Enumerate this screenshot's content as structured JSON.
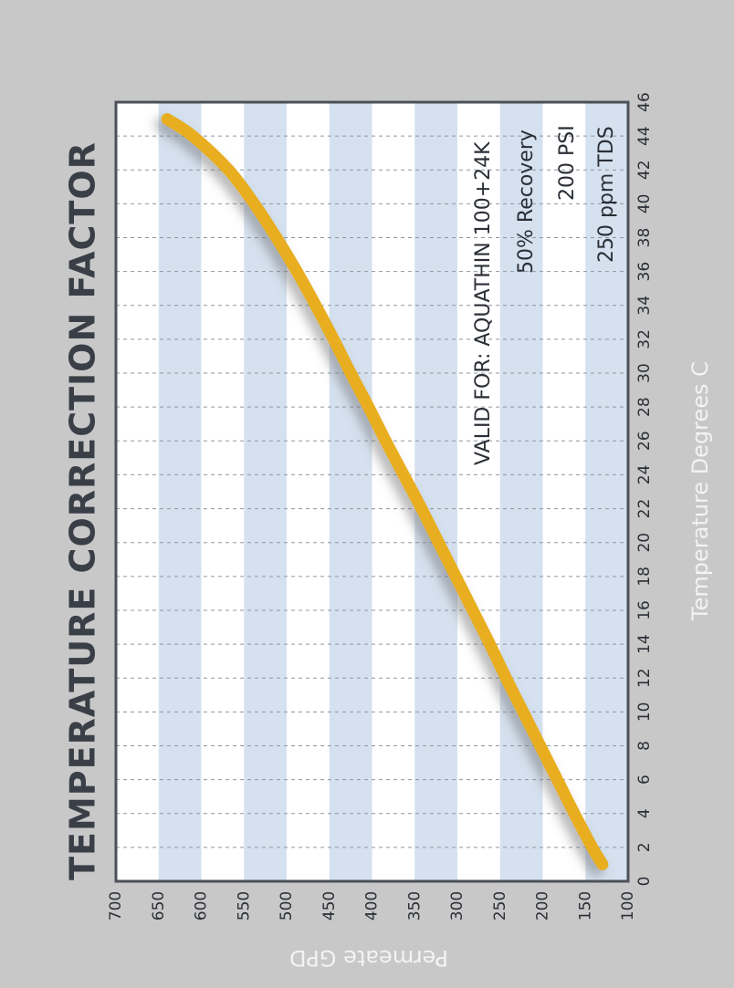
{
  "chart_data": {
    "type": "line",
    "title": "TEMPERATURE  CORRECTION  FACTOR",
    "xlabel": "Temperature Degrees  C",
    "ylabel": "Permeate  GPD",
    "xlim": [
      0,
      46
    ],
    "ylim": [
      100,
      700
    ],
    "x_ticks": [
      0,
      2,
      4,
      6,
      8,
      10,
      12,
      14,
      16,
      18,
      20,
      22,
      24,
      26,
      28,
      30,
      32,
      34,
      36,
      38,
      40,
      42,
      44,
      46
    ],
    "y_ticks": [
      100,
      150,
      200,
      250,
      300,
      350,
      400,
      450,
      500,
      550,
      600,
      650,
      700
    ],
    "grid": true,
    "orientation": "rotated-90-clockwise",
    "series": [
      {
        "x": [
          1,
          2,
          4,
          6,
          8,
          10,
          12,
          14,
          16,
          18,
          20,
          22,
          24,
          26,
          28,
          30,
          32,
          34,
          36,
          38,
          40,
          42,
          44,
          45
        ],
        "y": [
          130,
          142,
          163,
          183,
          203,
          223,
          243,
          262,
          282,
          302,
          322,
          342,
          363,
          384,
          404,
          425,
          445,
          466,
          488,
          512,
          538,
          568,
          610,
          640
        ],
        "color": "#e8ae1f"
      }
    ],
    "annotations": [
      "VALID FOR: AQUATHIN 100+24K",
      "50% Recovery",
      "200 PSI",
      "250 ppm TDS"
    ]
  },
  "colors": {
    "background": "#c8c8c8",
    "band": "#d5e1ef",
    "plot": "#ffffff",
    "axis": "#4c5058",
    "text": "#2b2f36",
    "label_light": "#f3f3f3"
  }
}
